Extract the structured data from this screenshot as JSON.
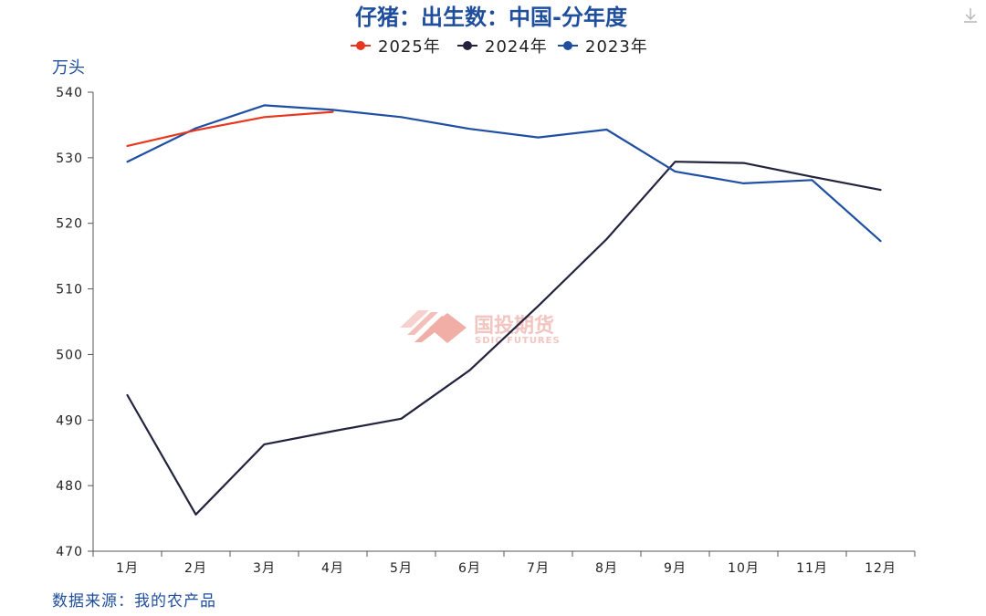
{
  "chart_data": {
    "type": "line",
    "title": "仔猪：出生数：中国-分年度",
    "ylabel": "万头",
    "source": "数据来源：我的农产品",
    "watermark": {
      "cn": "国投期货",
      "en": "SDIC FUTURES"
    },
    "ylim": [
      470,
      540
    ],
    "yticks": [
      470,
      480,
      490,
      500,
      510,
      520,
      530,
      540
    ],
    "categories": [
      "1月",
      "2月",
      "3月",
      "4月",
      "5月",
      "6月",
      "7月",
      "8月",
      "9月",
      "10月",
      "11月",
      "12月"
    ],
    "legend_position": "top-center",
    "grid": false,
    "series": [
      {
        "name": "2025年",
        "color": "#e8371f",
        "values": [
          531.8,
          534.2,
          536.2,
          537.0,
          null,
          null,
          null,
          null,
          null,
          null,
          null,
          null
        ]
      },
      {
        "name": "2024年",
        "color": "#23233d",
        "values": [
          493.8,
          475.6,
          486.3,
          488.3,
          490.2,
          497.6,
          507.4,
          517.6,
          529.4,
          529.2,
          527.1,
          525.1
        ]
      },
      {
        "name": "2023年",
        "color": "#1f4fa3",
        "values": [
          529.4,
          534.5,
          538.0,
          537.3,
          536.2,
          534.4,
          533.1,
          534.3,
          527.9,
          526.1,
          526.6,
          517.3
        ]
      }
    ]
  }
}
